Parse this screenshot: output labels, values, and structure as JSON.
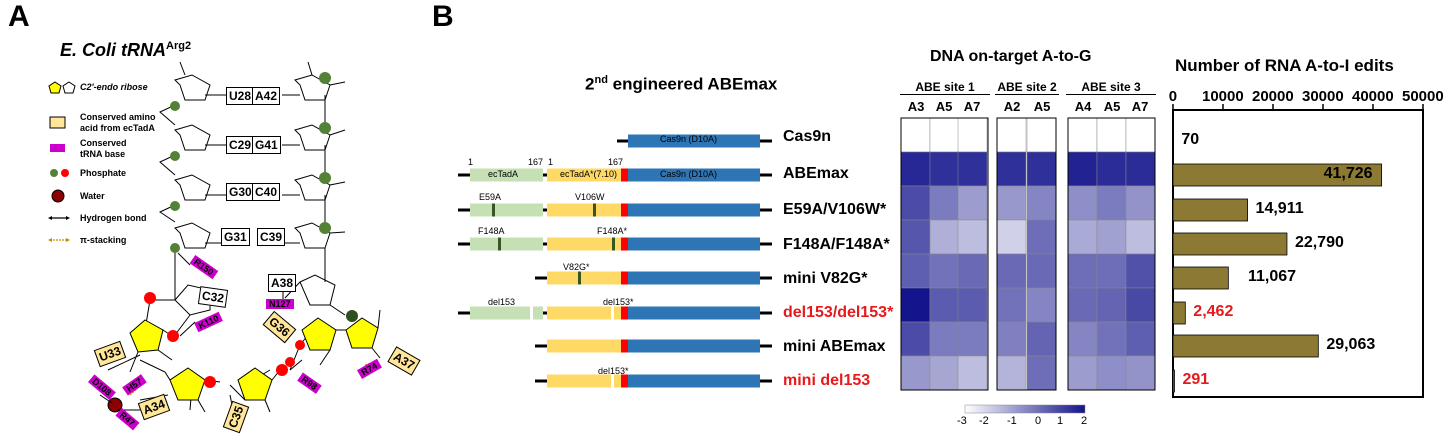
{
  "panelA": {
    "letter": "A",
    "title_main": "E. Coli tRNA",
    "title_sup": "Arg2",
    "legend": [
      {
        "id": "ribose",
        "text": "C2'-endo ribose"
      },
      {
        "id": "aa",
        "text": "Conserved amino acid from ecTadA"
      },
      {
        "id": "base",
        "text": "Conserved tRNA base"
      },
      {
        "id": "phosphate",
        "text": "Phosphate"
      },
      {
        "id": "water",
        "text": "Water"
      },
      {
        "id": "hbond",
        "text": "Hydrogen bond"
      },
      {
        "id": "stack",
        "text": "π-stacking"
      }
    ],
    "base_pairs": [
      {
        "left": "U28",
        "right": "A42"
      },
      {
        "left": "C29",
        "right": "G41"
      },
      {
        "left": "G30",
        "right": "C40"
      },
      {
        "left": "G31",
        "right": "C39"
      }
    ],
    "loop_bases": [
      "C32",
      "U33",
      "A34",
      "C35",
      "G36",
      "A37",
      "A38"
    ],
    "residues": [
      "R150",
      "N127",
      "K110",
      "D108",
      "H57",
      "R98",
      "R47",
      "R74"
    ],
    "colors": {
      "ribose": "#ffff00",
      "aa_box": "#ffe699",
      "trna_base": "#cc00cc",
      "phosphate_green": "#538135",
      "phosphate_red": "#ff0000",
      "water": "#8b0000"
    }
  },
  "panelB": {
    "letter": "B",
    "constructs_title": "2nd engineered ABEmax",
    "constructs_title_sup": "nd",
    "constructs_title_rest": " engineered ABEmax",
    "constructs_title_num": "2",
    "domain_labels": {
      "ectada": "ecTadA",
      "ectada_star": "ecTadA*(7.10)",
      "cas9n": "Cas9n (D10A)",
      "pos1": "1",
      "pos167": "167",
      "pos1b": "1",
      "pos167b": "167"
    },
    "constructs": [
      {
        "name": "Cas9n",
        "red": false,
        "left_mut": "",
        "right_mut": ""
      },
      {
        "name": "ABEmax",
        "red": false,
        "left_mut": "",
        "right_mut": ""
      },
      {
        "name": "E59A/V106W*",
        "red": false,
        "left_mut": "E59A",
        "right_mut": "V106W"
      },
      {
        "name": "F148A/F148A*",
        "red": false,
        "left_mut": "F148A",
        "right_mut": "F148A*"
      },
      {
        "name": "mini V82G*",
        "red": false,
        "left_mut": "",
        "right_mut": "V82G*"
      },
      {
        "name": "del153/del153*",
        "red": true,
        "left_mut": "del153",
        "right_mut": "del153*"
      },
      {
        "name": "mini ABEmax",
        "red": false,
        "left_mut": "",
        "right_mut": ""
      },
      {
        "name": "mini del153",
        "red": true,
        "left_mut": "",
        "right_mut": "del153*"
      }
    ],
    "heatmap_title": "DNA on-target A-to-G",
    "sites": [
      {
        "name": "ABE site 1",
        "cols": [
          "A3",
          "A5",
          "A7"
        ]
      },
      {
        "name": "ABE site 2",
        "cols": [
          "A2",
          "A5"
        ]
      },
      {
        "name": "ABE site 3",
        "cols": [
          "A4",
          "A5",
          "A7"
        ]
      }
    ],
    "heatmap_values": [
      [
        -3.0,
        -3.0,
        -3.0,
        -3.0,
        -3.0,
        -3.0,
        -3.0,
        -3.0
      ],
      [
        1.6,
        1.4,
        1.4,
        1.4,
        1.4,
        1.7,
        1.5,
        1.5
      ],
      [
        0.8,
        -0.2,
        -0.9,
        -0.8,
        -0.4,
        -0.6,
        -0.2,
        -0.7
      ],
      [
        0.6,
        -1.3,
        -1.6,
        -2.0,
        0.1,
        -1.2,
        -1.0,
        -1.6
      ],
      [
        0.4,
        0.0,
        0.2,
        0.2,
        0.2,
        0.1,
        0.1,
        0.7
      ],
      [
        2.0,
        0.5,
        0.5,
        0.0,
        -0.4,
        0.2,
        0.3,
        0.9
      ],
      [
        0.8,
        -0.2,
        -0.2,
        -0.3,
        0.3,
        -0.4,
        0.0,
        0.4
      ],
      [
        -0.8,
        -1.1,
        -1.6,
        -1.4,
        0.1,
        -0.9,
        -0.6,
        -0.7
      ]
    ],
    "colorbar": {
      "ticks": [
        "-3",
        "-2",
        "-1",
        "0",
        "1",
        "2"
      ]
    },
    "colors": {
      "cas9": "#2e75b6",
      "ectada": "#c5e0b4",
      "ectada_star": "#ffd966",
      "linker": "#ff0000",
      "mutation": "#375623",
      "bar": "#8c7a34",
      "highlight_red": "#e41a1c"
    }
  },
  "chart_data": {
    "type": "bar",
    "title": "Number of RNA A-to-I edits",
    "orientation": "horizontal",
    "categories": [
      "Cas9n",
      "ABEmax",
      "E59A/V106W*",
      "F148A/F148A*",
      "mini V82G*",
      "del153/del153*",
      "mini ABEmax",
      "mini del153"
    ],
    "values": [
      70,
      41726,
      14911,
      22790,
      11067,
      2462,
      29063,
      291
    ],
    "value_labels": [
      "70",
      "41,726",
      "14,911",
      "22,790",
      "11,067",
      "2,462",
      "29,063",
      "291"
    ],
    "highlighted": [
      false,
      false,
      false,
      false,
      false,
      true,
      false,
      true
    ],
    "xlim": [
      0,
      50000
    ],
    "xticks": [
      "0",
      "10000",
      "20000",
      "30000",
      "40000",
      "50000"
    ],
    "xlabel": "",
    "ylabel": "",
    "grid": false
  }
}
